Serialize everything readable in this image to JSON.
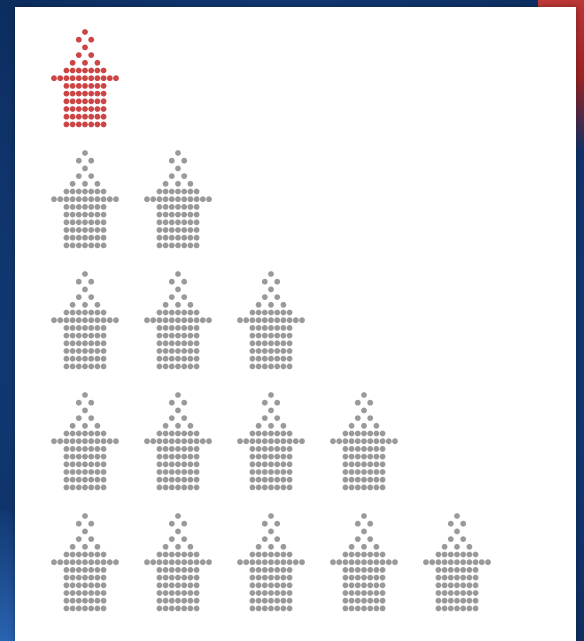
{
  "pictogram": {
    "type": "triangular-icon-grid",
    "icon": "church-icon",
    "rows": [
      1,
      2,
      3,
      4,
      5
    ],
    "highlighted_count": 1,
    "total_count": 15,
    "colors": {
      "highlight": "#cc4444",
      "base": "#9a9a9a",
      "panel": "#ffffff",
      "background": "#16427f",
      "accent": "#a52a2a"
    }
  }
}
